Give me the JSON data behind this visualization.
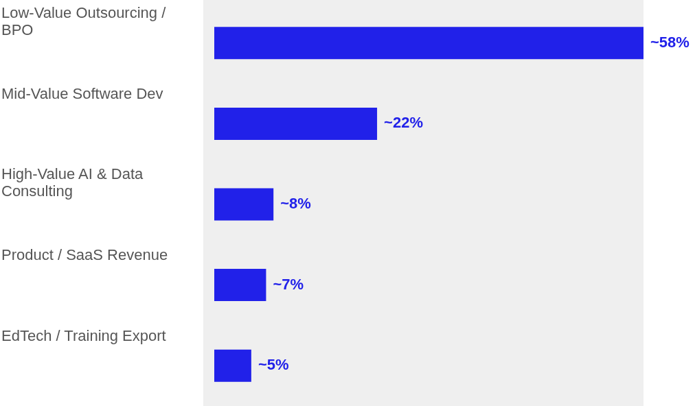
{
  "chart_data": {
    "type": "bar",
    "orientation": "horizontal",
    "categories": [
      "Low-Value Outsourcing / BPO",
      "Mid-Value Software Dev",
      "High-Value AI & Data Consulting",
      "Product / SaaS Revenue",
      "EdTech / Training Export"
    ],
    "values": [
      58,
      22,
      8,
      7,
      5
    ],
    "color": "#2121e9",
    "value_labels": [
      "~58%",
      "~22%",
      "~8%",
      "~7%",
      "~5%"
    ]
  }
}
